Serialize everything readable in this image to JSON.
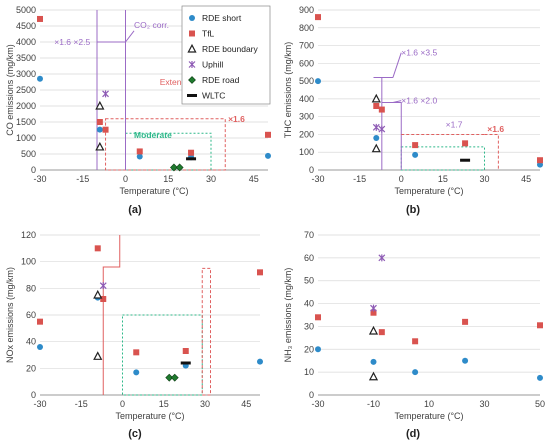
{
  "legend": {
    "entries": [
      {
        "name": "RDE short",
        "marker": "circle",
        "color": "#2e8bc9"
      },
      {
        "name": "TfL",
        "marker": "square",
        "color": "#d9534f"
      },
      {
        "name": "RDE boundary",
        "marker": "triangle",
        "color": "#222222"
      },
      {
        "name": "Uphill",
        "marker": "star",
        "color": "#8e5bb5"
      },
      {
        "name": "RDE road",
        "marker": "diamond",
        "color": "#1f7a2e"
      },
      {
        "name": "WLTC",
        "marker": "dash",
        "color": "#111111"
      }
    ]
  },
  "colors": {
    "co2_corr": "#9b6bc6",
    "extended": "#e06060",
    "moderate": "#2eb88a",
    "grid": "#d9d9d9"
  },
  "chart_data": [
    {
      "type": "scatter",
      "panel_label": "(a)",
      "xlabel": "Temperature (°C)",
      "ylabel": "CO emissions (mg/km)",
      "xlim": [
        -30,
        50
      ],
      "ylim": [
        0,
        5000
      ],
      "xticks": [
        -30,
        -15,
        0,
        15,
        30,
        45
      ],
      "yticks": [
        0,
        500,
        1000,
        1500,
        2000,
        2500,
        3000,
        3500,
        4000,
        4500,
        5000
      ],
      "series": [
        {
          "name": "RDE short",
          "points": [
            [
              -30,
              2850
            ],
            [
              -9,
              1260
            ],
            [
              5,
              420
            ],
            [
              23,
              400
            ],
            [
              50,
              440
            ]
          ]
        },
        {
          "name": "TfL",
          "points": [
            [
              -30,
              4720
            ],
            [
              -9,
              1500
            ],
            [
              -7,
              1260
            ],
            [
              5,
              580
            ],
            [
              23,
              540
            ],
            [
              50,
              1100
            ]
          ]
        },
        {
          "name": "RDE boundary",
          "points": [
            [
              -9,
              2000
            ],
            [
              -9,
              720
            ]
          ]
        },
        {
          "name": "Uphill",
          "points": [
            [
              -7,
              2380
            ]
          ]
        },
        {
          "name": "RDE road",
          "points": [
            [
              17,
              80
            ],
            [
              19,
              80
            ]
          ]
        },
        {
          "name": "WLTC",
          "points": [
            [
              23,
              350
            ]
          ]
        }
      ],
      "annotations": {
        "co2_corr": "CO₂ corr.",
        "factor_left": "×1.6 ×2.5",
        "extended": "Extended",
        "extended_factor": "×1.6",
        "moderate": "Moderate"
      }
    },
    {
      "type": "scatter",
      "panel_label": "(b)",
      "xlabel": "Temperature (°C)",
      "ylabel": "THC emissions (mg/km)",
      "xlim": [
        -30,
        50
      ],
      "ylim": [
        0,
        900
      ],
      "xticks": [
        -30,
        -15,
        0,
        15,
        30,
        45
      ],
      "yticks": [
        0,
        100,
        200,
        300,
        400,
        500,
        600,
        700,
        800,
        900
      ],
      "series": [
        {
          "name": "RDE short",
          "points": [
            [
              -30,
              500
            ],
            [
              -9,
              180
            ],
            [
              5,
              85
            ],
            [
              50,
              30
            ]
          ]
        },
        {
          "name": "TfL",
          "points": [
            [
              -30,
              860
            ],
            [
              -9,
              360
            ],
            [
              -7,
              340
            ],
            [
              5,
              140
            ],
            [
              23,
              150
            ],
            [
              50,
              55
            ]
          ]
        },
        {
          "name": "RDE boundary",
          "points": [
            [
              -9,
              400
            ],
            [
              -9,
              120
            ]
          ]
        },
        {
          "name": "Uphill",
          "points": [
            [
              -9,
              240
            ],
            [
              -7,
              230
            ]
          ]
        },
        {
          "name": "WLTC",
          "points": [
            [
              23,
              55
            ]
          ]
        }
      ],
      "annotations": {
        "f1": "×1.6 ×3.5",
        "f2": "×1.6 ×2.0",
        "f3": "×1.7",
        "f4": "×1.6"
      }
    },
    {
      "type": "scatter",
      "panel_label": "(c)",
      "xlabel": "Temperature (°C)",
      "ylabel": "NOx emissions (mg/km)",
      "xlim": [
        -30,
        50
      ],
      "ylim": [
        0,
        120
      ],
      "xticks": [
        -30,
        -15,
        0,
        15,
        30,
        45
      ],
      "yticks": [
        0,
        20,
        40,
        60,
        80,
        100,
        120
      ],
      "series": [
        {
          "name": "RDE short",
          "points": [
            [
              -30,
              36
            ],
            [
              -9,
              73
            ],
            [
              5,
              17
            ],
            [
              23,
              22
            ],
            [
              50,
              25
            ]
          ]
        },
        {
          "name": "TfL",
          "points": [
            [
              -30,
              55
            ],
            [
              -9,
              110
            ],
            [
              -7,
              72
            ],
            [
              5,
              32
            ],
            [
              23,
              33
            ],
            [
              50,
              92
            ]
          ]
        },
        {
          "name": "RDE boundary",
          "points": [
            [
              -9,
              75
            ],
            [
              -9,
              29
            ]
          ]
        },
        {
          "name": "Uphill",
          "points": [
            [
              -7,
              82
            ]
          ]
        },
        {
          "name": "RDE road",
          "points": [
            [
              17,
              13
            ],
            [
              19,
              13
            ]
          ]
        },
        {
          "name": "WLTC",
          "points": [
            [
              23,
              24
            ]
          ]
        }
      ]
    },
    {
      "type": "scatter",
      "panel_label": "(d)",
      "xlabel": "Temperature (°C)",
      "ylabel": "NH₃ emissions (mg/km)",
      "xlim": [
        -30,
        50
      ],
      "ylim": [
        0,
        70
      ],
      "xticks": [
        -30,
        -10,
        10,
        30,
        50
      ],
      "yticks": [
        0,
        10,
        20,
        30,
        40,
        50,
        60,
        70
      ],
      "series": [
        {
          "name": "RDE short",
          "points": [
            [
              -30,
              20
            ],
            [
              -10,
              14.5
            ],
            [
              5,
              10
            ],
            [
              23,
              15
            ],
            [
              50,
              7.5
            ]
          ]
        },
        {
          "name": "TfL",
          "points": [
            [
              -30,
              34
            ],
            [
              -10,
              36
            ],
            [
              -7,
              27.5
            ],
            [
              5,
              23.5
            ],
            [
              23,
              32
            ],
            [
              50,
              30.5
            ]
          ]
        },
        {
          "name": "RDE boundary",
          "points": [
            [
              -10,
              28
            ],
            [
              -10,
              8
            ]
          ]
        },
        {
          "name": "Uphill",
          "points": [
            [
              -10,
              38
            ],
            [
              -7,
              60
            ]
          ]
        }
      ]
    }
  ]
}
